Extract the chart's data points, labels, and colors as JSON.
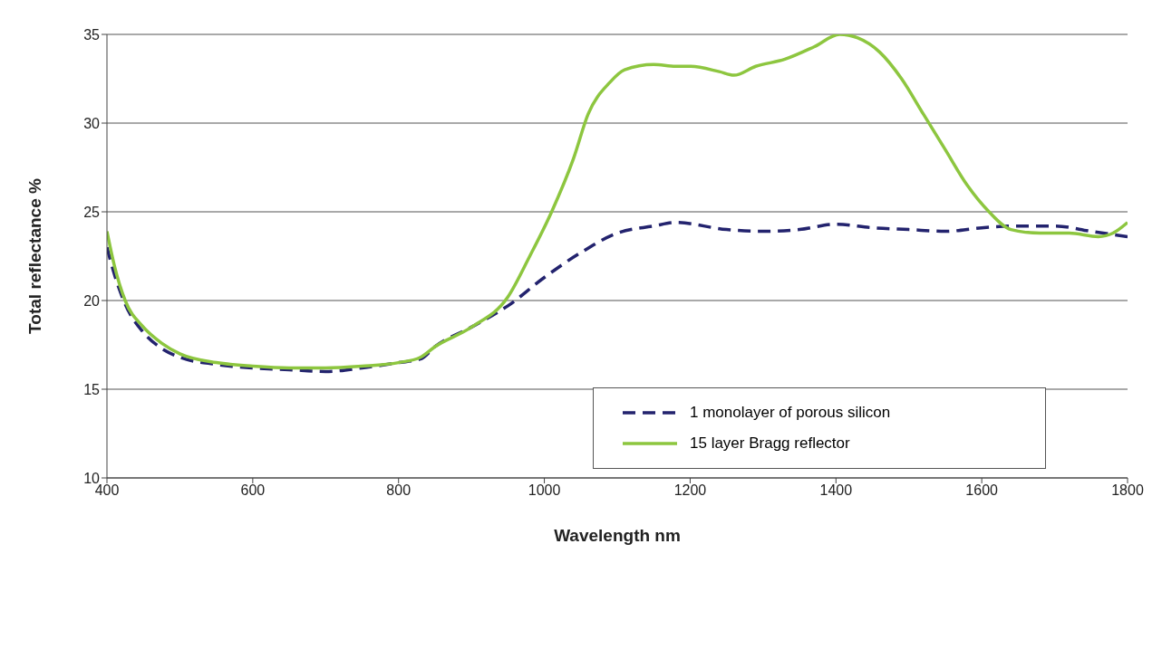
{
  "chart_data": {
    "type": "line",
    "xlabel": "Wavelength nm",
    "ylabel": "Total reflectance %",
    "xlim": [
      400,
      1800
    ],
    "xticks": [
      400,
      600,
      800,
      1000,
      1200,
      1400,
      1600,
      1800
    ],
    "ylim": [
      10,
      35
    ],
    "yticks": [
      10,
      15,
      20,
      25,
      30,
      35
    ],
    "grid": "y",
    "legend": "bottom right",
    "marker": "none",
    "series": [
      {
        "name": "1 monolayer of porous silicon",
        "color": "#23236e",
        "line_style": "dashed",
        "x": [
          400,
          410,
          425,
          450,
          475,
          500,
          550,
          600,
          650,
          700,
          750,
          800,
          830,
          850,
          900,
          950,
          1000,
          1050,
          1100,
          1150,
          1180,
          1250,
          1300,
          1350,
          1400,
          1450,
          1500,
          1550,
          1600,
          1650,
          1700,
          1750,
          1800
        ],
        "values": [
          23,
          21.5,
          19.8,
          18.2,
          17.3,
          16.8,
          16.4,
          16.2,
          16.1,
          16,
          16.2,
          16.5,
          16.7,
          17.4,
          18.5,
          19.7,
          21.3,
          22.7,
          23.8,
          24.2,
          24.4,
          24,
          23.9,
          24,
          24.3,
          24.1,
          24,
          23.9,
          24.1,
          24.2,
          24.2,
          23.9,
          23.6
        ]
      },
      {
        "name": "15 layer Bragg reflector",
        "color": "#8dc63f",
        "line_style": "solid",
        "x": [
          400,
          410,
          425,
          450,
          475,
          500,
          550,
          600,
          650,
          700,
          750,
          800,
          830,
          850,
          900,
          950,
          980,
          1010,
          1040,
          1060,
          1090,
          1110,
          1150,
          1180,
          1200,
          1240,
          1260,
          1290,
          1330,
          1370,
          1405,
          1430,
          1460,
          1490,
          1520,
          1550,
          1580,
          1610,
          1640,
          1680,
          1720,
          1760,
          1780,
          1800
        ],
        "values": [
          23.9,
          22,
          20,
          18.5,
          17.6,
          17,
          16.5,
          16.3,
          16.2,
          16.2,
          16.3,
          16.5,
          16.8,
          17.4,
          18.5,
          20.2,
          22.5,
          25,
          28,
          30.5,
          32.3,
          33,
          33.3,
          33.2,
          33.2,
          32.9,
          32.7,
          33.2,
          33.6,
          34.3,
          35,
          34.8,
          34,
          32.5,
          30.5,
          28.5,
          26.5,
          25,
          24,
          23.8,
          23.8,
          23.6,
          23.8,
          24.4
        ]
      }
    ]
  }
}
